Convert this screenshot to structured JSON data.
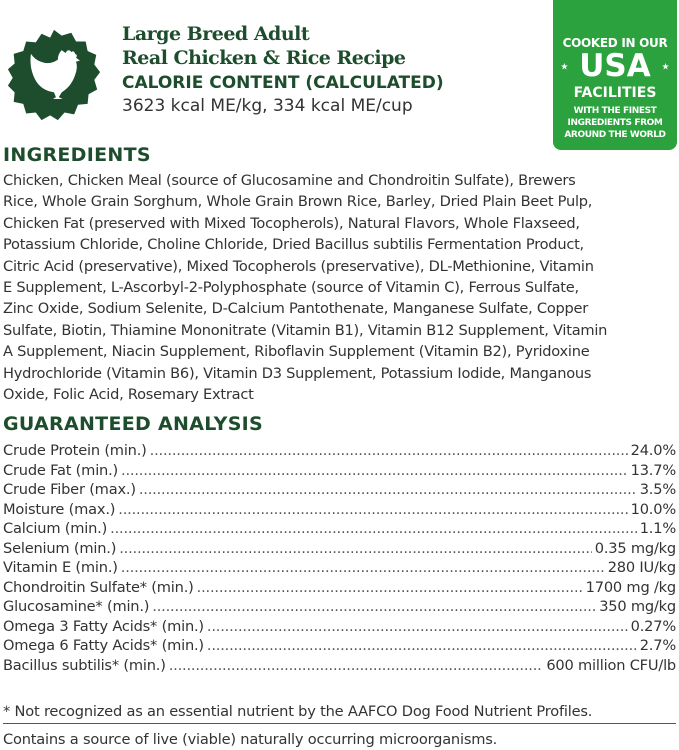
{
  "header": {
    "line1": "Large Breed Adult",
    "line2": "Real Chicken & Rice Recipe",
    "calorie_title": "CALORIE CONTENT (CALCULATED)",
    "calorie_value": "3623 kcal ME/kg, 334 kcal ME/cup",
    "logo_icon": "chicken-icon",
    "brand_color": "#1d4d2c"
  },
  "badge": {
    "line1": "COOKED IN OUR",
    "usa": "USA",
    "line3": "FACILITIES",
    "line4": "WITH THE FINEST",
    "line5": "INGREDIENTS FROM",
    "line6": "AROUND THE WORLD",
    "color": "#2ba23d"
  },
  "ingredients": {
    "title": "INGREDIENTS",
    "lines": [
      "Chicken, Chicken Meal (source of Glucosamine and Chondroitin Sulfate), Brewers",
      "Rice, Whole Grain Sorghum, Whole Grain Brown Rice, Barley, Dried Plain Beet Pulp,",
      "Chicken Fat (preserved with Mixed Tocopherols), Natural Flavors, Whole Flaxseed,",
      "Potassium Chloride, Choline Chloride, Dried Bacillus subtilis Fermentation Product,",
      "Citric Acid (preservative), Mixed Tocopherols (preservative), DL-Methionine, Vitamin",
      "E Supplement, L-Ascorbyl-2-Polyphosphate (source of Vitamin C), Ferrous Sulfate,",
      "Zinc Oxide, Sodium Selenite, D-Calcium Pantothenate, Manganese Sulfate, Copper",
      "Sulfate, Biotin, Thiamine Mononitrate (Vitamin B1), Vitamin B12 Supplement, Vitamin",
      "A Supplement, Niacin Supplement, Riboflavin Supplement (Vitamin B2), Pyridoxine",
      "Hydrochloride (Vitamin B6), Vitamin D3 Supplement, Potassium Iodide, Manganous",
      "Oxide, Folic Acid, Rosemary Extract"
    ]
  },
  "analysis": {
    "title": "GUARANTEED ANALYSIS",
    "rows": [
      {
        "label": "Crude Protein (min.)",
        "value": "24.0%"
      },
      {
        "label": "Crude Fat (min.)",
        "value": "13.7%"
      },
      {
        "label": "Crude Fiber (max.)",
        "value": "3.5%"
      },
      {
        "label": "Moisture (max.)",
        "value": "10.0%"
      },
      {
        "label": "Calcium (min.)",
        "value": "1.1%"
      },
      {
        "label": "Selenium (min.)",
        "value": "0.35 mg/kg"
      },
      {
        "label": "Vitamin E (min.)",
        "value": "280 IU/kg"
      },
      {
        "label": "Chondroitin Sulfate* (min.)",
        "value": "1700 mg /kg"
      },
      {
        "label": "Glucosamine* (min.)",
        "value": "350 mg/kg"
      },
      {
        "label": "Omega 3 Fatty Acids* (min.)",
        "value": "0.27%"
      },
      {
        "label": "Omega 6 Fatty Acids* (min.)",
        "value": "2.7%"
      },
      {
        "label": "Bacillus subtilis* (min.)",
        "value": "600 million CFU/lb"
      }
    ]
  },
  "footnotes": {
    "note1": "* Not recognized as an essential nutrient by the AAFCO Dog Food Nutrient Profiles.",
    "note2": "Contains a source of live (viable) naturally occurring microorganisms."
  }
}
